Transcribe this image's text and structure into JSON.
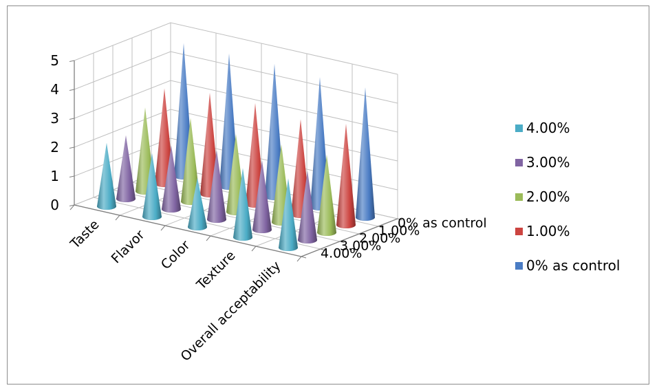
{
  "chart_data": {
    "type": "bar",
    "subtype": "3d-cone",
    "title": "",
    "xlabel": "",
    "ylabel": "",
    "ylim": [
      0,
      5
    ],
    "yticks": [
      0,
      1,
      2,
      3,
      4,
      5
    ],
    "grid": true,
    "legend_position": "right",
    "categories": [
      "Taste",
      "Flavor",
      "Color",
      "Texture",
      "Overall acceptability"
    ],
    "series": [
      {
        "name": "0% as control",
        "color": "#4a7cc4",
        "values": [
          4.6,
          4.6,
          4.6,
          4.5,
          4.5
        ]
      },
      {
        "name": "1.00%",
        "color": "#cc4440",
        "values": [
          3.3,
          3.5,
          3.5,
          3.3,
          3.5
        ]
      },
      {
        "name": "2.00%",
        "color": "#9bbb59",
        "values": [
          2.9,
          2.9,
          2.7,
          2.7,
          2.7
        ]
      },
      {
        "name": "3.00%",
        "color": "#8064a2",
        "values": [
          2.2,
          2.2,
          2.4,
          2.4,
          2.4
        ]
      },
      {
        "name": "4.00%",
        "color": "#4bacc6",
        "values": [
          2.2,
          2.2,
          1.7,
          2.4,
          2.4
        ]
      }
    ],
    "depth_labels": [
      "0% as control",
      "1.00%",
      "2.00%",
      "3.00%",
      "4.00%"
    ],
    "legend_order": [
      "4.00%",
      "3.00%",
      "2.00%",
      "1.00%",
      "0% as control"
    ]
  }
}
